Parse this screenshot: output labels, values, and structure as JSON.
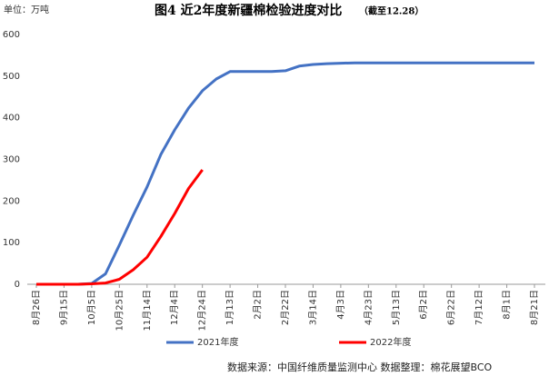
{
  "chart_data": {
    "type": "line",
    "title": "图4 近2年度新疆棉检验进度对比",
    "subtitle": "（截至12.28）",
    "y_label": "单位：万吨",
    "source": "数据来源：中国纤维质量监测中心    数据整理：棉花展望BCO",
    "categories": [
      "8月26日",
      null,
      "9月15日",
      null,
      "10月5日",
      null,
      "10月25日",
      null,
      "11月14日",
      null,
      "12月4日",
      null,
      "12月24日",
      null,
      "1月13日",
      null,
      "2月2日",
      null,
      "2月22日",
      null,
      "3月14日",
      null,
      "4月3日",
      null,
      "4月23日",
      null,
      "5月13日",
      null,
      "6月2日",
      null,
      "6月22日",
      null,
      "7月12日",
      null,
      "8月1日",
      null,
      "8月21日"
    ],
    "series": [
      {
        "name": "2021年度",
        "color": "#4472c4",
        "values": [
          0,
          0,
          0,
          0,
          2,
          25,
          94,
          166,
          234,
          312,
          371,
          423,
          465,
          493,
          511,
          511,
          511,
          511,
          513,
          524,
          528,
          530,
          531,
          532,
          532,
          532,
          532,
          532,
          532,
          532,
          532,
          532,
          532,
          532,
          532,
          532,
          532
        ]
      },
      {
        "name": "2022年度",
        "color": "#ff0000",
        "values": [
          0,
          0,
          0,
          0,
          1,
          3,
          12,
          35,
          65,
          115,
          170,
          230,
          275,
          null,
          null,
          null,
          null,
          null,
          null,
          null,
          null,
          null,
          null,
          null,
          null,
          null,
          null,
          null,
          null,
          null,
          null,
          null,
          null,
          null,
          null,
          null,
          null
        ]
      }
    ],
    "ylim": [
      0,
      600
    ],
    "yticks": [
      0,
      100,
      200,
      300,
      400,
      500,
      600
    ],
    "grid": false
  }
}
